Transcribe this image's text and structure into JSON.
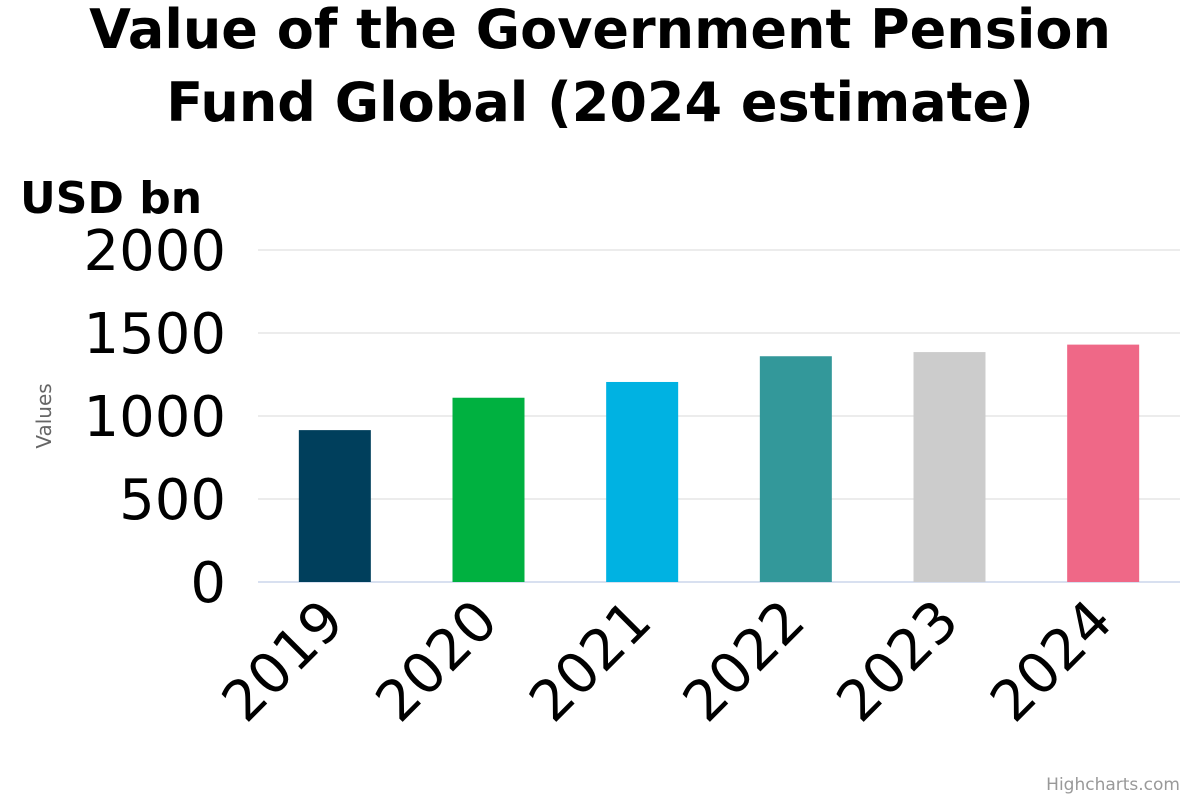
{
  "chart_data": {
    "type": "bar",
    "title": "Value of the Government Pension Fund Global (2024 estimate)",
    "title_lines": [
      "Value of the Government Pension",
      "Fund Global (2024 estimate)"
    ],
    "unit_label": "USD bn",
    "ylabel": "Values",
    "xlabel": "",
    "categories": [
      "2019",
      "2020",
      "2021",
      "2022",
      "2023",
      "2024"
    ],
    "values": [
      915,
      1110,
      1205,
      1360,
      1385,
      1430
    ],
    "colors": [
      "#003f5c",
      "#00b140",
      "#00b2e2",
      "#33989a",
      "#cccccc",
      "#ef6887"
    ],
    "ylim": [
      0,
      2000
    ],
    "yticks": [
      0,
      500,
      1000,
      1500,
      2000
    ],
    "grid": true,
    "legend": "none"
  },
  "credits": "Highcharts.com"
}
